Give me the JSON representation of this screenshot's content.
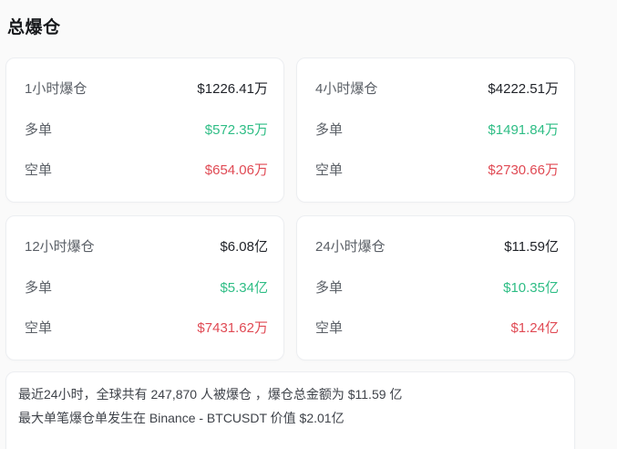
{
  "page": {
    "title": "总爆仓"
  },
  "labels": {
    "long": "多单",
    "short": "空单"
  },
  "colors": {
    "long": "#2ebd85",
    "short": "#e04a54",
    "total_text": "#202329",
    "label_text": "#5a5f66"
  },
  "cards": [
    {
      "period": "1小时爆仓",
      "total": "$1226.41万",
      "long": "$572.35万",
      "short": "$654.06万"
    },
    {
      "period": "4小时爆仓",
      "total": "$4222.51万",
      "long": "$1491.84万",
      "short": "$2730.66万"
    },
    {
      "period": "12小时爆仓",
      "total": "$6.08亿",
      "long": "$5.34亿",
      "short": "$7431.62万"
    },
    {
      "period": "24小时爆仓",
      "total": "$11.59亿",
      "long": "$10.35亿",
      "short": "$1.24亿"
    }
  ],
  "summary": {
    "line1": "最近24小时，全球共有 247,870 人被爆仓 ，爆仓总金额为 $11.59 亿",
    "line2": "最大单笔爆仓单发生在 Binance - BTCUSDT 价值 $2.01亿"
  }
}
